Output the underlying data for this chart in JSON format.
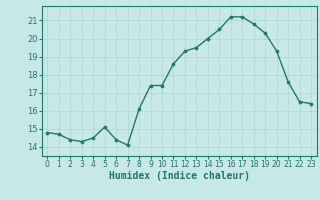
{
  "x": [
    0,
    1,
    2,
    3,
    4,
    5,
    6,
    7,
    8,
    9,
    10,
    11,
    12,
    13,
    14,
    15,
    16,
    17,
    18,
    19,
    20,
    21,
    22,
    23
  ],
  "y": [
    14.8,
    14.7,
    14.4,
    14.3,
    14.5,
    15.1,
    14.4,
    14.1,
    16.1,
    17.4,
    17.4,
    18.6,
    19.3,
    19.5,
    20.0,
    20.5,
    21.2,
    21.2,
    20.8,
    20.3,
    19.3,
    17.6,
    16.5,
    16.4
  ],
  "xlabel": "Humidex (Indice chaleur)",
  "ylim": [
    13.5,
    21.8
  ],
  "xlim": [
    -0.5,
    23.5
  ],
  "yticks": [
    14,
    15,
    16,
    17,
    18,
    19,
    20,
    21
  ],
  "xticks": [
    0,
    1,
    2,
    3,
    4,
    5,
    6,
    7,
    8,
    9,
    10,
    11,
    12,
    13,
    14,
    15,
    16,
    17,
    18,
    19,
    20,
    21,
    22,
    23
  ],
  "line_color": "#1a7a6e",
  "marker_color": "#1a7a6e",
  "bg_color": "#c8e8e5",
  "grid_color": "#b0d4d0",
  "tick_color": "#1a7a6e",
  "label_color": "#1a7a6e"
}
